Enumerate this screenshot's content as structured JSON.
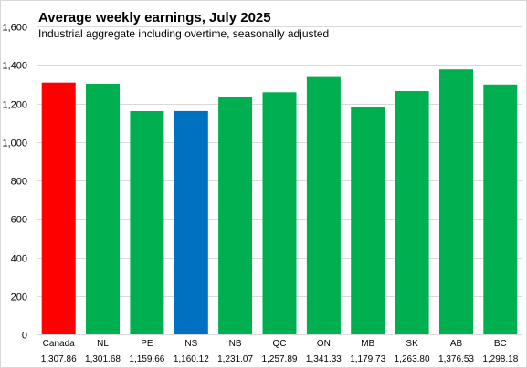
{
  "chart_data": {
    "type": "bar",
    "title": "Average weekly earnings, July 2025",
    "subtitle": "Industrial aggregate including overtime, seasonally adjusted",
    "xlabel": "",
    "ylabel": "",
    "ylim": [
      0,
      1600
    ],
    "yticks": [
      0,
      200,
      400,
      600,
      800,
      1000,
      1200,
      1400,
      1600
    ],
    "ytick_labels": [
      "0",
      "200",
      "400",
      "600",
      "800",
      "1,000",
      "1,200",
      "1,400",
      "1,600"
    ],
    "grid": true,
    "legend": "none",
    "categories": [
      "Canada",
      "NL",
      "PE",
      "NS",
      "NB",
      "QC",
      "ON",
      "MB",
      "SK",
      "AB",
      "BC"
    ],
    "values": [
      1307.86,
      1301.68,
      1159.66,
      1160.12,
      1231.07,
      1257.89,
      1341.33,
      1179.73,
      1263.8,
      1376.53,
      1298.18
    ],
    "value_labels": [
      "1,307.86",
      "1,301.68",
      "1,159.66",
      "1,160.12",
      "1,231.07",
      "1,257.89",
      "1,341.33",
      "1,179.73",
      "1,263.80",
      "1,376.53",
      "1,298.18"
    ],
    "bar_colors": [
      "#ff0000",
      "#00b050",
      "#00b050",
      "#0070c0",
      "#00b050",
      "#00b050",
      "#00b050",
      "#00b050",
      "#00b050",
      "#00b050",
      "#00b050"
    ]
  }
}
